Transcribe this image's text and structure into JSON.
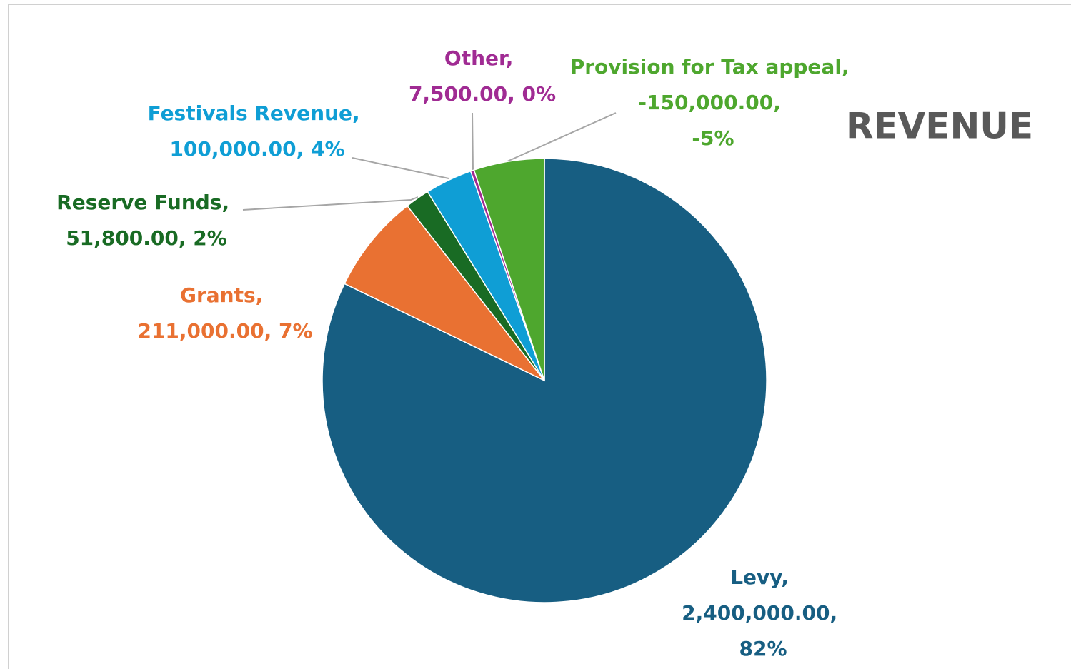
{
  "chart_data": {
    "type": "pie",
    "title": "REVENUE",
    "categories": [
      "Levy",
      "Grants",
      "Reserve Funds",
      "Festivals Revenue",
      "Other",
      "Provision for Tax appeal"
    ],
    "values": [
      2400000,
      211000,
      51800,
      100000,
      7500,
      -150000
    ],
    "value_labels": [
      "2,400,000.00",
      "211,000.00",
      "51,800.00",
      "100,000.00",
      "7,500.00",
      "-150,000.00"
    ],
    "percent_labels": [
      "82%",
      "7%",
      "2%",
      "4%",
      "0%",
      "-5%"
    ],
    "label_separator": ", ",
    "colors": [
      "#175e82",
      "#e97132",
      "#196b24",
      "#0f9ed5",
      "#a02b93",
      "#4ea72e"
    ]
  }
}
